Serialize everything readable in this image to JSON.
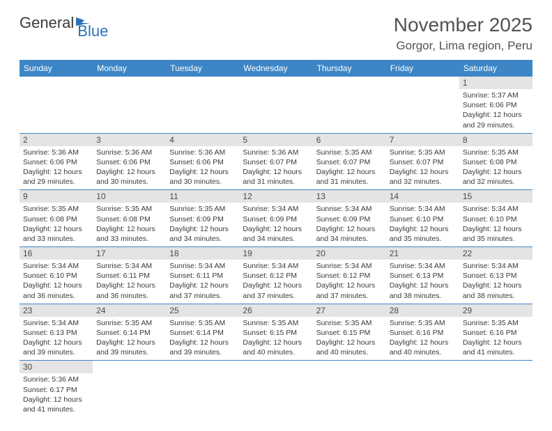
{
  "logo": {
    "text1": "General",
    "text2": "Blue"
  },
  "title": "November 2025",
  "location": "Gorgor, Lima region, Peru",
  "colors": {
    "header_bg": "#3d86c6",
    "header_fg": "#ffffff",
    "daynum_bg": "#e4e4e4",
    "border": "#3d86c6",
    "text": "#3a3a3a",
    "title": "#525252",
    "logo_gray": "#3a3a3a",
    "logo_blue": "#2a72b5"
  },
  "weekdays": [
    "Sunday",
    "Monday",
    "Tuesday",
    "Wednesday",
    "Thursday",
    "Friday",
    "Saturday"
  ],
  "weeks": [
    [
      null,
      null,
      null,
      null,
      null,
      null,
      {
        "n": "1",
        "sr": "Sunrise: 5:37 AM",
        "ss": "Sunset: 6:06 PM",
        "dl": "Daylight: 12 hours and 29 minutes."
      }
    ],
    [
      {
        "n": "2",
        "sr": "Sunrise: 5:36 AM",
        "ss": "Sunset: 6:06 PM",
        "dl": "Daylight: 12 hours and 29 minutes."
      },
      {
        "n": "3",
        "sr": "Sunrise: 5:36 AM",
        "ss": "Sunset: 6:06 PM",
        "dl": "Daylight: 12 hours and 30 minutes."
      },
      {
        "n": "4",
        "sr": "Sunrise: 5:36 AM",
        "ss": "Sunset: 6:06 PM",
        "dl": "Daylight: 12 hours and 30 minutes."
      },
      {
        "n": "5",
        "sr": "Sunrise: 5:36 AM",
        "ss": "Sunset: 6:07 PM",
        "dl": "Daylight: 12 hours and 31 minutes."
      },
      {
        "n": "6",
        "sr": "Sunrise: 5:35 AM",
        "ss": "Sunset: 6:07 PM",
        "dl": "Daylight: 12 hours and 31 minutes."
      },
      {
        "n": "7",
        "sr": "Sunrise: 5:35 AM",
        "ss": "Sunset: 6:07 PM",
        "dl": "Daylight: 12 hours and 32 minutes."
      },
      {
        "n": "8",
        "sr": "Sunrise: 5:35 AM",
        "ss": "Sunset: 6:08 PM",
        "dl": "Daylight: 12 hours and 32 minutes."
      }
    ],
    [
      {
        "n": "9",
        "sr": "Sunrise: 5:35 AM",
        "ss": "Sunset: 6:08 PM",
        "dl": "Daylight: 12 hours and 33 minutes."
      },
      {
        "n": "10",
        "sr": "Sunrise: 5:35 AM",
        "ss": "Sunset: 6:08 PM",
        "dl": "Daylight: 12 hours and 33 minutes."
      },
      {
        "n": "11",
        "sr": "Sunrise: 5:35 AM",
        "ss": "Sunset: 6:09 PM",
        "dl": "Daylight: 12 hours and 34 minutes."
      },
      {
        "n": "12",
        "sr": "Sunrise: 5:34 AM",
        "ss": "Sunset: 6:09 PM",
        "dl": "Daylight: 12 hours and 34 minutes."
      },
      {
        "n": "13",
        "sr": "Sunrise: 5:34 AM",
        "ss": "Sunset: 6:09 PM",
        "dl": "Daylight: 12 hours and 34 minutes."
      },
      {
        "n": "14",
        "sr": "Sunrise: 5:34 AM",
        "ss": "Sunset: 6:10 PM",
        "dl": "Daylight: 12 hours and 35 minutes."
      },
      {
        "n": "15",
        "sr": "Sunrise: 5:34 AM",
        "ss": "Sunset: 6:10 PM",
        "dl": "Daylight: 12 hours and 35 minutes."
      }
    ],
    [
      {
        "n": "16",
        "sr": "Sunrise: 5:34 AM",
        "ss": "Sunset: 6:10 PM",
        "dl": "Daylight: 12 hours and 36 minutes."
      },
      {
        "n": "17",
        "sr": "Sunrise: 5:34 AM",
        "ss": "Sunset: 6:11 PM",
        "dl": "Daylight: 12 hours and 36 minutes."
      },
      {
        "n": "18",
        "sr": "Sunrise: 5:34 AM",
        "ss": "Sunset: 6:11 PM",
        "dl": "Daylight: 12 hours and 37 minutes."
      },
      {
        "n": "19",
        "sr": "Sunrise: 5:34 AM",
        "ss": "Sunset: 6:12 PM",
        "dl": "Daylight: 12 hours and 37 minutes."
      },
      {
        "n": "20",
        "sr": "Sunrise: 5:34 AM",
        "ss": "Sunset: 6:12 PM",
        "dl": "Daylight: 12 hours and 37 minutes."
      },
      {
        "n": "21",
        "sr": "Sunrise: 5:34 AM",
        "ss": "Sunset: 6:13 PM",
        "dl": "Daylight: 12 hours and 38 minutes."
      },
      {
        "n": "22",
        "sr": "Sunrise: 5:34 AM",
        "ss": "Sunset: 6:13 PM",
        "dl": "Daylight: 12 hours and 38 minutes."
      }
    ],
    [
      {
        "n": "23",
        "sr": "Sunrise: 5:34 AM",
        "ss": "Sunset: 6:13 PM",
        "dl": "Daylight: 12 hours and 39 minutes."
      },
      {
        "n": "24",
        "sr": "Sunrise: 5:35 AM",
        "ss": "Sunset: 6:14 PM",
        "dl": "Daylight: 12 hours and 39 minutes."
      },
      {
        "n": "25",
        "sr": "Sunrise: 5:35 AM",
        "ss": "Sunset: 6:14 PM",
        "dl": "Daylight: 12 hours and 39 minutes."
      },
      {
        "n": "26",
        "sr": "Sunrise: 5:35 AM",
        "ss": "Sunset: 6:15 PM",
        "dl": "Daylight: 12 hours and 40 minutes."
      },
      {
        "n": "27",
        "sr": "Sunrise: 5:35 AM",
        "ss": "Sunset: 6:15 PM",
        "dl": "Daylight: 12 hours and 40 minutes."
      },
      {
        "n": "28",
        "sr": "Sunrise: 5:35 AM",
        "ss": "Sunset: 6:16 PM",
        "dl": "Daylight: 12 hours and 40 minutes."
      },
      {
        "n": "29",
        "sr": "Sunrise: 5:35 AM",
        "ss": "Sunset: 6:16 PM",
        "dl": "Daylight: 12 hours and 41 minutes."
      }
    ],
    [
      {
        "n": "30",
        "sr": "Sunrise: 5:36 AM",
        "ss": "Sunset: 6:17 PM",
        "dl": "Daylight: 12 hours and 41 minutes."
      },
      null,
      null,
      null,
      null,
      null,
      null
    ]
  ]
}
